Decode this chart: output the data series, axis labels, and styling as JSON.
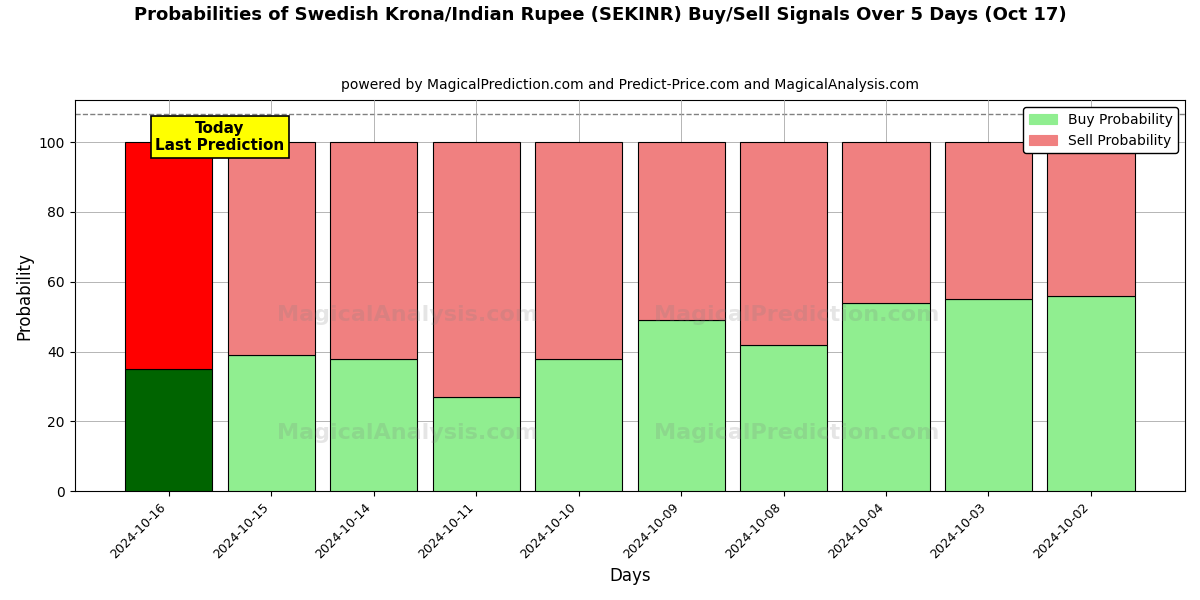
{
  "title": "Probabilities of Swedish Krona/Indian Rupee (SEKINR) Buy/Sell Signals Over 5 Days (Oct 17)",
  "subtitle": "powered by MagicalPrediction.com and Predict-Price.com and MagicalAnalysis.com",
  "xlabel": "Days",
  "ylabel": "Probability",
  "categories": [
    "2024-10-16",
    "2024-10-15",
    "2024-10-14",
    "2024-10-11",
    "2024-10-10",
    "2024-10-09",
    "2024-10-08",
    "2024-10-04",
    "2024-10-03",
    "2024-10-02"
  ],
  "buy_values": [
    35,
    39,
    38,
    27,
    38,
    49,
    42,
    54,
    55,
    56
  ],
  "sell_values": [
    65,
    61,
    62,
    73,
    62,
    51,
    58,
    46,
    45,
    44
  ],
  "today_buy_color": "#006400",
  "today_sell_color": "#FF0000",
  "buy_color": "#90EE90",
  "sell_color": "#F08080",
  "today_label_bg": "#FFFF00",
  "today_label_text": "Today\nLast Prediction",
  "ylim": [
    0,
    112
  ],
  "yticks": [
    0,
    20,
    40,
    60,
    80,
    100
  ],
  "dashed_line_y": 108,
  "background_color": "#ffffff",
  "grid_color": "#aaaaaa",
  "bar_width": 0.85
}
